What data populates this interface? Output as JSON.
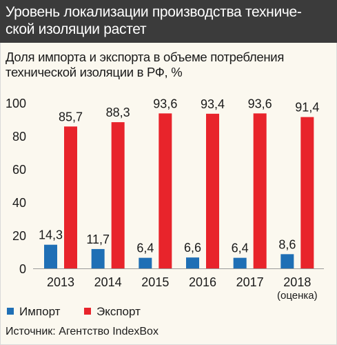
{
  "header": {
    "title": "Уровень локализации производства техниче-\nской изоляции растет"
  },
  "chart_data": {
    "type": "bar",
    "title": "Доля импорта и экспорта в объеме потребления технической изоляции в РФ, %",
    "categories": [
      "2013",
      "2014",
      "2015",
      "2016",
      "2017",
      "2018"
    ],
    "category_notes": [
      "",
      "",
      "",
      "",
      "",
      "(оценка)"
    ],
    "series": [
      {
        "name": "Импорт",
        "color": "#1f6fb5",
        "values": [
          14.3,
          11.7,
          6.4,
          6.6,
          6.4,
          8.6
        ],
        "labels": [
          "14,3",
          "11,7",
          "6,4",
          "6,6",
          "6,4",
          "8,6"
        ]
      },
      {
        "name": "Экспорт",
        "color": "#e8242b",
        "values": [
          85.7,
          88.3,
          93.6,
          93.4,
          93.6,
          91.4
        ],
        "labels": [
          "85,7",
          "88,3",
          "93,6",
          "93,4",
          "93,6",
          "91,4"
        ]
      }
    ],
    "y_ticks": [
      "0",
      "20",
      "40",
      "60",
      "80",
      "100"
    ],
    "ylim": [
      0,
      100
    ],
    "grid": false,
    "legend": "bottom-left"
  },
  "footer": {
    "source": "Источник: Агентство IndexBox"
  }
}
